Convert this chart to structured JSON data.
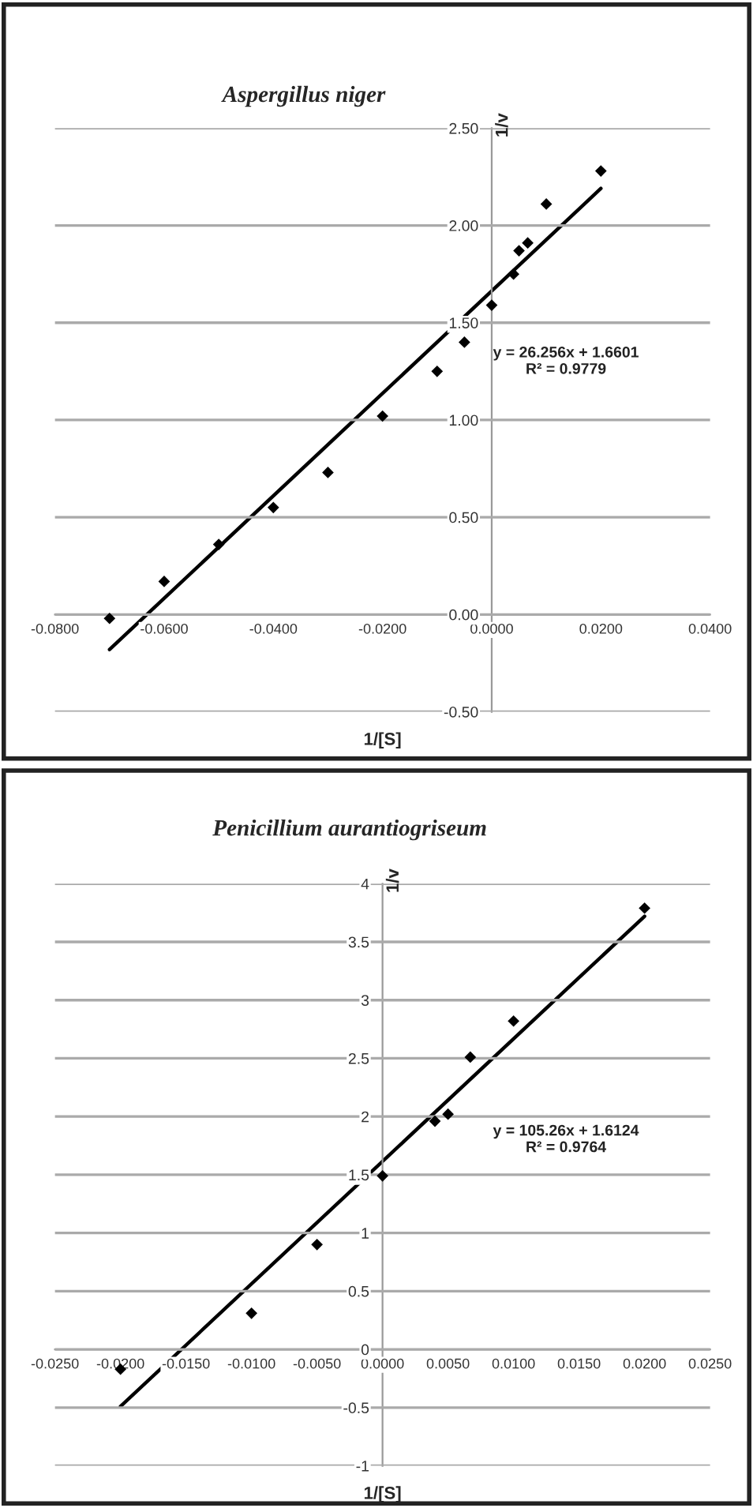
{
  "chart_data": [
    {
      "type": "scatter",
      "title": "Aspergillus niger",
      "xlabel": "1/[S]",
      "ylabel": "1/v",
      "xlim": [
        -0.08,
        0.04
      ],
      "ylim": [
        -0.5,
        2.5
      ],
      "xticks": [
        {
          "value": -0.08,
          "label": "-0.0800"
        },
        {
          "value": -0.06,
          "label": "-0.0600"
        },
        {
          "value": -0.04,
          "label": "-0.0400"
        },
        {
          "value": -0.02,
          "label": "-0.0200"
        },
        {
          "value": 0,
          "label": "0.0000"
        },
        {
          "value": 0.02,
          "label": "0.0200"
        },
        {
          "value": 0.04,
          "label": "0.0400"
        }
      ],
      "yticks": [
        {
          "value": -0.5,
          "label": "-0.50"
        },
        {
          "value": 0,
          "label": "0.00"
        },
        {
          "value": 0.5,
          "label": "0.50"
        },
        {
          "value": 1,
          "label": "1.00"
        },
        {
          "value": 1.5,
          "label": "1.50"
        },
        {
          "value": 2,
          "label": "2.00"
        },
        {
          "value": 2.5,
          "label": "2.50"
        }
      ],
      "grid": "y",
      "series": [
        {
          "marker": "diamond",
          "color": "#000000",
          "x": [
            -0.07,
            -0.06,
            -0.05,
            -0.04,
            -0.03,
            -0.02,
            -0.01,
            -0.005,
            0.0,
            0.004,
            0.005,
            0.0066,
            0.01,
            0.02
          ],
          "values": [
            -0.02,
            0.17,
            0.36,
            0.55,
            0.73,
            1.02,
            1.25,
            1.4,
            1.59,
            1.75,
            1.87,
            1.91,
            2.11,
            2.28
          ]
        },
        {
          "type": "line",
          "color": "#000000",
          "x": [
            -0.07,
            0.02
          ],
          "values": [
            -0.18,
            2.19
          ]
        }
      ],
      "annotations": [
        "y = 26.256x + 1.6601\nR² = 0.9779"
      ]
    },
    {
      "type": "scatter",
      "title": "Penicillium aurantiogriseum",
      "xlabel": "1/[S]",
      "ylabel": "1/v",
      "xlim": [
        -0.025,
        0.025
      ],
      "ylim": [
        -1,
        4
      ],
      "xticks": [
        {
          "value": -0.025,
          "label": "-0.0250"
        },
        {
          "value": -0.02,
          "label": "-0.0200"
        },
        {
          "value": -0.015,
          "label": "-0.0150"
        },
        {
          "value": -0.01,
          "label": "-0.0100"
        },
        {
          "value": -0.005,
          "label": "-0.0050"
        },
        {
          "value": 0,
          "label": "0.0000"
        },
        {
          "value": 0.005,
          "label": "0.0050"
        },
        {
          "value": 0.01,
          "label": "0.0100"
        },
        {
          "value": 0.015,
          "label": "0.0150"
        },
        {
          "value": 0.02,
          "label": "0.0200"
        },
        {
          "value": 0.025,
          "label": "0.0250"
        }
      ],
      "yticks": [
        -1,
        -0.5,
        0,
        0.5,
        1,
        1.5,
        2,
        2.5,
        3,
        3.5,
        4
      ],
      "grid": "y",
      "series": [
        {
          "marker": "diamond",
          "color": "#000000",
          "x": [
            -0.02,
            -0.01,
            -0.005,
            0.0,
            0.004,
            0.005,
            0.0067,
            0.01,
            0.02
          ],
          "values": [
            -0.17,
            0.31,
            0.9,
            1.49,
            1.96,
            2.02,
            2.51,
            2.82,
            3.79
          ]
        },
        {
          "type": "line",
          "color": "#000000",
          "x": [
            -0.02,
            0.02
          ],
          "values": [
            -0.49,
            3.72
          ]
        }
      ],
      "annotations": [
        "y = 105.26x + 1.6124\nR² = 0.9764"
      ]
    }
  ]
}
